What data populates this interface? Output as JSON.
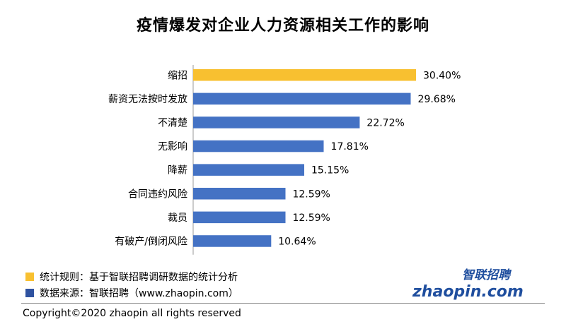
{
  "chart_data": {
    "type": "bar",
    "orientation": "horizontal",
    "title": "疫情爆发对企业人力资源相关工作的影响",
    "categories": [
      "缩招",
      "薪资无法按时发放",
      "不清楚",
      "无影响",
      "降薪",
      "合同违约风险",
      "裁员",
      "有破产/倒闭风险"
    ],
    "values": [
      30.4,
      29.68,
      22.72,
      17.81,
      15.15,
      12.59,
      12.59,
      10.64
    ],
    "labels": [
      "30.40%",
      "29.68%",
      "22.72%",
      "17.81%",
      "15.15%",
      "12.59%",
      "12.59%",
      "10.64%"
    ],
    "highlight_index": 0,
    "xlim": [
      0,
      30.4
    ],
    "xlabel": "",
    "ylabel": "",
    "grid": false
  },
  "colors": {
    "highlight": "#F8C030",
    "bar": "#4472C4",
    "legend_rule": "#F8C030",
    "legend_source": "#2F52A0",
    "axis": "#999999"
  },
  "legend": {
    "rule": "统计规则：基于智联招聘调研数据的统计分析",
    "source": "数据来源：智联招聘（www.zhaopin.com）"
  },
  "logo": {
    "cn": "智联招聘",
    "en": "zhaopin.com"
  },
  "footer": {
    "copyright": "Copyright©2020 zhaopin all rights reserved"
  }
}
